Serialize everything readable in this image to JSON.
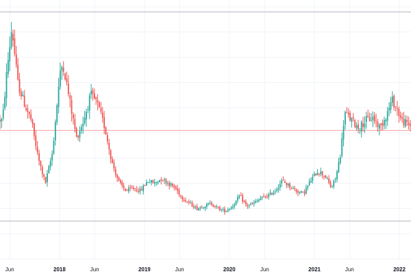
{
  "chart_data": {
    "type": "candlestick",
    "title": "",
    "xlabel": "",
    "ylabel": "",
    "grid": true,
    "x_tick_labels": [
      {
        "label": "Jun",
        "date": "2017-06-01",
        "bold": false
      },
      {
        "label": "2018",
        "date": "2018-01-01",
        "bold": true
      },
      {
        "label": "Jun",
        "date": "2018-06-01",
        "bold": false
      },
      {
        "label": "2019",
        "date": "2019-01-01",
        "bold": true
      },
      {
        "label": "Jun",
        "date": "2019-06-01",
        "bold": false
      },
      {
        "label": "2020",
        "date": "2020-01-01",
        "bold": true
      },
      {
        "label": "Jun",
        "date": "2020-06-01",
        "bold": false
      },
      {
        "label": "2021",
        "date": "2021-01-01",
        "bold": true
      },
      {
        "label": "Jun",
        "date": "2021-06-01",
        "bold": false
      },
      {
        "label": "2022",
        "date": "2022-01-01",
        "bold": true
      }
    ],
    "ylim": [
      0,
      100
    ],
    "upper_band": 98,
    "reference_line": 51,
    "lower_band": 15,
    "colors": {
      "up": "#26a69a",
      "down": "#ef5350",
      "band": "#b2b5be",
      "reference": "#f7a1a1",
      "grid": "#f0f3fa"
    },
    "anchors": [
      [
        "2017-05-01",
        55
      ],
      [
        "2017-05-20",
        75
      ],
      [
        "2017-06-10",
        92
      ],
      [
        "2017-07-05",
        70
      ],
      [
        "2017-08-01",
        62
      ],
      [
        "2017-09-01",
        55
      ],
      [
        "2017-10-01",
        40
      ],
      [
        "2017-11-01",
        30
      ],
      [
        "2017-12-01",
        42
      ],
      [
        "2018-01-01",
        72
      ],
      [
        "2018-01-15",
        78
      ],
      [
        "2018-02-15",
        62
      ],
      [
        "2018-03-15",
        48
      ],
      [
        "2018-04-15",
        55
      ],
      [
        "2018-05-15",
        65
      ],
      [
        "2018-06-10",
        62
      ],
      [
        "2018-07-15",
        52
      ],
      [
        "2018-08-15",
        38
      ],
      [
        "2018-09-15",
        30
      ],
      [
        "2018-10-15",
        27
      ],
      [
        "2018-11-15",
        28
      ],
      [
        "2018-12-15",
        27
      ],
      [
        "2019-01-15",
        31
      ],
      [
        "2019-02-15",
        30
      ],
      [
        "2019-03-15",
        32
      ],
      [
        "2019-04-15",
        30
      ],
      [
        "2019-05-15",
        28
      ],
      [
        "2019-06-15",
        24
      ],
      [
        "2019-07-15",
        22
      ],
      [
        "2019-08-15",
        20
      ],
      [
        "2019-09-15",
        21
      ],
      [
        "2019-10-15",
        22
      ],
      [
        "2019-11-15",
        20
      ],
      [
        "2019-12-15",
        19
      ],
      [
        "2020-01-15",
        21
      ],
      [
        "2020-02-15",
        25
      ],
      [
        "2020-03-15",
        21
      ],
      [
        "2020-04-15",
        22
      ],
      [
        "2020-05-15",
        24
      ],
      [
        "2020-06-15",
        25
      ],
      [
        "2020-07-15",
        27
      ],
      [
        "2020-08-15",
        31
      ],
      [
        "2020-09-15",
        29
      ],
      [
        "2020-10-15",
        27
      ],
      [
        "2020-11-15",
        26
      ],
      [
        "2020-12-15",
        31
      ],
      [
        "2021-01-15",
        35
      ],
      [
        "2021-02-15",
        33
      ],
      [
        "2021-03-15",
        28
      ],
      [
        "2021-04-05",
        33
      ],
      [
        "2021-04-25",
        43
      ],
      [
        "2021-05-10",
        58
      ],
      [
        "2021-06-10",
        55
      ],
      [
        "2021-07-10",
        52
      ],
      [
        "2021-08-10",
        55
      ],
      [
        "2021-09-10",
        56
      ],
      [
        "2021-10-10",
        52
      ],
      [
        "2021-11-10",
        58
      ],
      [
        "2021-12-01",
        63
      ],
      [
        "2021-12-20",
        60
      ],
      [
        "2022-01-10",
        55
      ],
      [
        "2022-02-10",
        53
      ]
    ],
    "x_range": [
      "2017-04-20",
      "2022-02-20"
    ],
    "candle_interval_days": 7
  }
}
